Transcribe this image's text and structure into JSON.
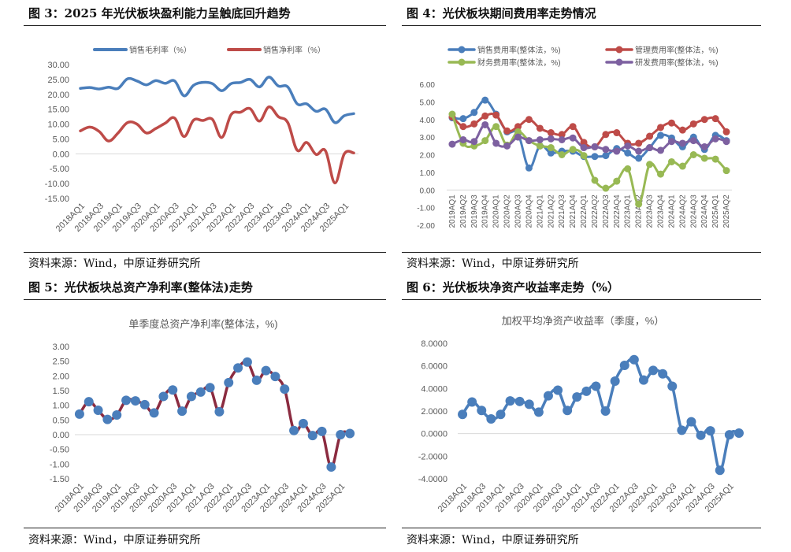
{
  "panels": [
    {
      "title": "图 3：2025 年光伏板块盈利能力呈触底回升趋势",
      "source": "资料来源：Wind，中原证券研究所"
    },
    {
      "title": "图 4：光伏板块期间费用率走势情况",
      "source": "资料来源：Wind，中原证券研究所"
    },
    {
      "title": "图 5：光伏板块总资产净利率(整体法)走势",
      "source": "资料来源：Wind，中原证券研究所"
    },
    {
      "title": "图 6：光伏板块净资产收益率走势（%）",
      "source": "资料来源：Wind，中原证券研究所"
    }
  ],
  "chart_data": [
    {
      "type": "line",
      "title": "",
      "ylim": [
        -15,
        30
      ],
      "yticks": [
        "30.00",
        "25.00",
        "20.00",
        "15.00",
        "10.00",
        "5.00",
        "0.00",
        "-5.00",
        "-10.00",
        "-15.00"
      ],
      "tick_labels": [
        "2018AQ1",
        "2018AQ3",
        "2019AQ1",
        "2019AQ3",
        "2020AQ1",
        "2020AQ3",
        "2021AQ1",
        "2021AQ3",
        "2022AQ1",
        "2022AQ3",
        "2023AQ1",
        "2023AQ3",
        "2024AQ1",
        "2024AQ3",
        "2025AQ1"
      ],
      "categories": [
        "2018Q1",
        "2018Q2",
        "2018Q3",
        "2018Q4",
        "2019Q1",
        "2019Q2",
        "2019Q3",
        "2019Q4",
        "2020Q1",
        "2020Q2",
        "2020Q3",
        "2020Q4",
        "2021Q1",
        "2021Q2",
        "2021Q3",
        "2021Q4",
        "2022Q1",
        "2022Q2",
        "2022Q3",
        "2022Q4",
        "2023Q1",
        "2023Q2",
        "2023Q3",
        "2023Q4",
        "2024Q1",
        "2024Q2",
        "2024Q3",
        "2024Q4",
        "2025Q1",
        "2025Q2"
      ],
      "legend": "top",
      "markers": false,
      "series": [
        {
          "name": "销售毛利率（%）",
          "color": "#4a7ebb",
          "values": [
            22.0,
            22.3,
            21.8,
            22.4,
            22.0,
            25.2,
            24.5,
            23.2,
            24.6,
            23.7,
            24.5,
            19.5,
            23.0,
            24.0,
            23.6,
            21.2,
            23.6,
            24.0,
            25.0,
            22.5,
            25.8,
            22.8,
            22.5,
            16.8,
            16.8,
            14.3,
            15.0,
            10.5,
            12.8,
            13.5
          ]
        },
        {
          "name": "销售净利率（%）",
          "color": "#be4b48",
          "values": [
            7.7,
            9.0,
            7.5,
            4.3,
            7.0,
            10.5,
            10.0,
            7.0,
            8.5,
            10.3,
            12.0,
            5.8,
            11.3,
            11.2,
            11.6,
            5.5,
            13.2,
            14.0,
            15.2,
            11.0,
            15.8,
            12.5,
            10.5,
            1.2,
            3.8,
            -0.2,
            1.0,
            -9.8,
            0.0,
            0.3
          ]
        }
      ]
    },
    {
      "type": "line",
      "title": "",
      "ylim": [
        -2,
        6
      ],
      "yticks": [
        "6.00",
        "5.00",
        "4.00",
        "3.00",
        "2.00",
        "1.00",
        "0.00",
        "-1.00",
        "-2.00"
      ],
      "tick_labels": [
        "2019AQ1",
        "2019AQ2",
        "2019AQ3",
        "2019AQ4",
        "2020AQ1",
        "2020AQ2",
        "2020AQ3",
        "2020AQ4",
        "2021AQ1",
        "2021AQ2",
        "2021AQ3",
        "2021AQ4",
        "2022AQ1",
        "2022AQ2",
        "2022AQ3",
        "2022AQ4",
        "2023AQ1",
        "2023AQ2",
        "2023AQ3",
        "2023AQ4",
        "2024AQ1",
        "2024AQ2",
        "2024AQ3",
        "2024AQ4",
        "2025AQ1",
        "2025AQ2"
      ],
      "legend": "top",
      "markers": true,
      "series": [
        {
          "name": "销售费用率(整体法，%)",
          "color": "#4a7ebb",
          "values": [
            4.1,
            4.05,
            4.4,
            5.1,
            4.3,
            3.3,
            3.2,
            1.25,
            2.5,
            2.1,
            2.2,
            2.2,
            1.9,
            1.9,
            1.95,
            2.35,
            2.1,
            1.8,
            2.4,
            3.1,
            2.95,
            2.45,
            3.0,
            2.3,
            3.1,
            2.8
          ]
        },
        {
          "name": "管理费用率(整体法，%)",
          "color": "#be4b48",
          "values": [
            4.15,
            3.6,
            3.75,
            4.2,
            4.25,
            3.35,
            3.6,
            4.0,
            3.5,
            3.25,
            3.15,
            3.6,
            2.7,
            2.45,
            3.15,
            3.25,
            2.65,
            2.65,
            3.05,
            3.55,
            3.8,
            3.4,
            3.75,
            4.0,
            4.05,
            3.3
          ]
        },
        {
          "name": "财务费用率(整体法，%)",
          "color": "#98b954",
          "values": [
            4.3,
            2.65,
            2.5,
            2.8,
            3.6,
            2.55,
            3.3,
            2.8,
            2.5,
            2.4,
            2.0,
            2.3,
            1.95,
            0.55,
            0.1,
            0.5,
            1.2,
            -0.8,
            1.45,
            0.9,
            1.6,
            1.35,
            2.0,
            1.8,
            1.75,
            1.1
          ]
        },
        {
          "name": "研发费用率(整体法，%)",
          "color": "#7d60a0",
          "values": [
            2.6,
            2.85,
            2.75,
            3.7,
            2.65,
            2.5,
            3.0,
            2.8,
            2.85,
            2.9,
            2.85,
            2.95,
            2.4,
            2.45,
            2.3,
            2.2,
            2.5,
            2.2,
            2.4,
            2.25,
            2.75,
            2.65,
            2.8,
            2.45,
            2.9,
            2.75
          ]
        }
      ]
    },
    {
      "type": "line",
      "title": "单季度总资产净利率(整体法，%)",
      "ylim": [
        -1.5,
        3
      ],
      "yticks": [
        "3.00",
        "2.50",
        "2.00",
        "1.50",
        "1.00",
        "0.50",
        "0.00",
        "-0.50",
        "-1.00",
        "-1.50"
      ],
      "tick_labels": [
        "2018AQ1",
        "2018AQ3",
        "2019AQ1",
        "2019AQ3",
        "2020AQ1",
        "2020AQ3",
        "2021AQ1",
        "2021AQ3",
        "2022AQ1",
        "2022AQ3",
        "2023AQ1",
        "2023AQ3",
        "2024AQ1",
        "2024AQ3",
        "2025AQ1"
      ],
      "markers": true,
      "series": [
        {
          "color": "#8b2b40",
          "marker_color": "#4a7ebb",
          "values": [
            0.7,
            1.12,
            0.83,
            0.52,
            0.67,
            1.17,
            1.15,
            1.02,
            0.74,
            1.3,
            1.52,
            0.8,
            1.3,
            1.45,
            1.6,
            0.78,
            1.77,
            2.27,
            2.47,
            1.85,
            2.18,
            1.98,
            1.55,
            0.14,
            0.38,
            -0.03,
            0.11,
            -1.1,
            0.0,
            0.04
          ]
        }
      ]
    },
    {
      "type": "line",
      "title": "加权平均净资产收益率（季度，%）",
      "ylim": [
        -4,
        8
      ],
      "yticks": [
        "8.0000",
        "6.0000",
        "4.0000",
        "2.0000",
        "0.0000",
        "-2.0000",
        "-4.0000"
      ],
      "tick_labels": [
        "2018AQ1",
        "2018AQ3",
        "2019AQ1",
        "2019AQ3",
        "2020AQ1",
        "2020AQ3",
        "2021AQ1",
        "2021AQ3",
        "2022AQ1",
        "2022AQ3",
        "2023AQ1",
        "2023AQ3",
        "2024AQ1",
        "2024AQ3",
        "2025AQ1"
      ],
      "markers": true,
      "series": [
        {
          "color": "#4a7ebb",
          "marker_color": "#4a7ebb",
          "values": [
            1.7,
            2.8,
            2.05,
            1.3,
            1.7,
            2.9,
            2.85,
            2.6,
            1.9,
            3.35,
            3.85,
            2.05,
            3.25,
            3.75,
            4.2,
            2.0,
            4.65,
            6.05,
            6.55,
            4.75,
            5.6,
            5.3,
            4.2,
            0.3,
            1.05,
            -0.15,
            0.25,
            -3.25,
            -0.1,
            0.05
          ]
        }
      ]
    }
  ]
}
